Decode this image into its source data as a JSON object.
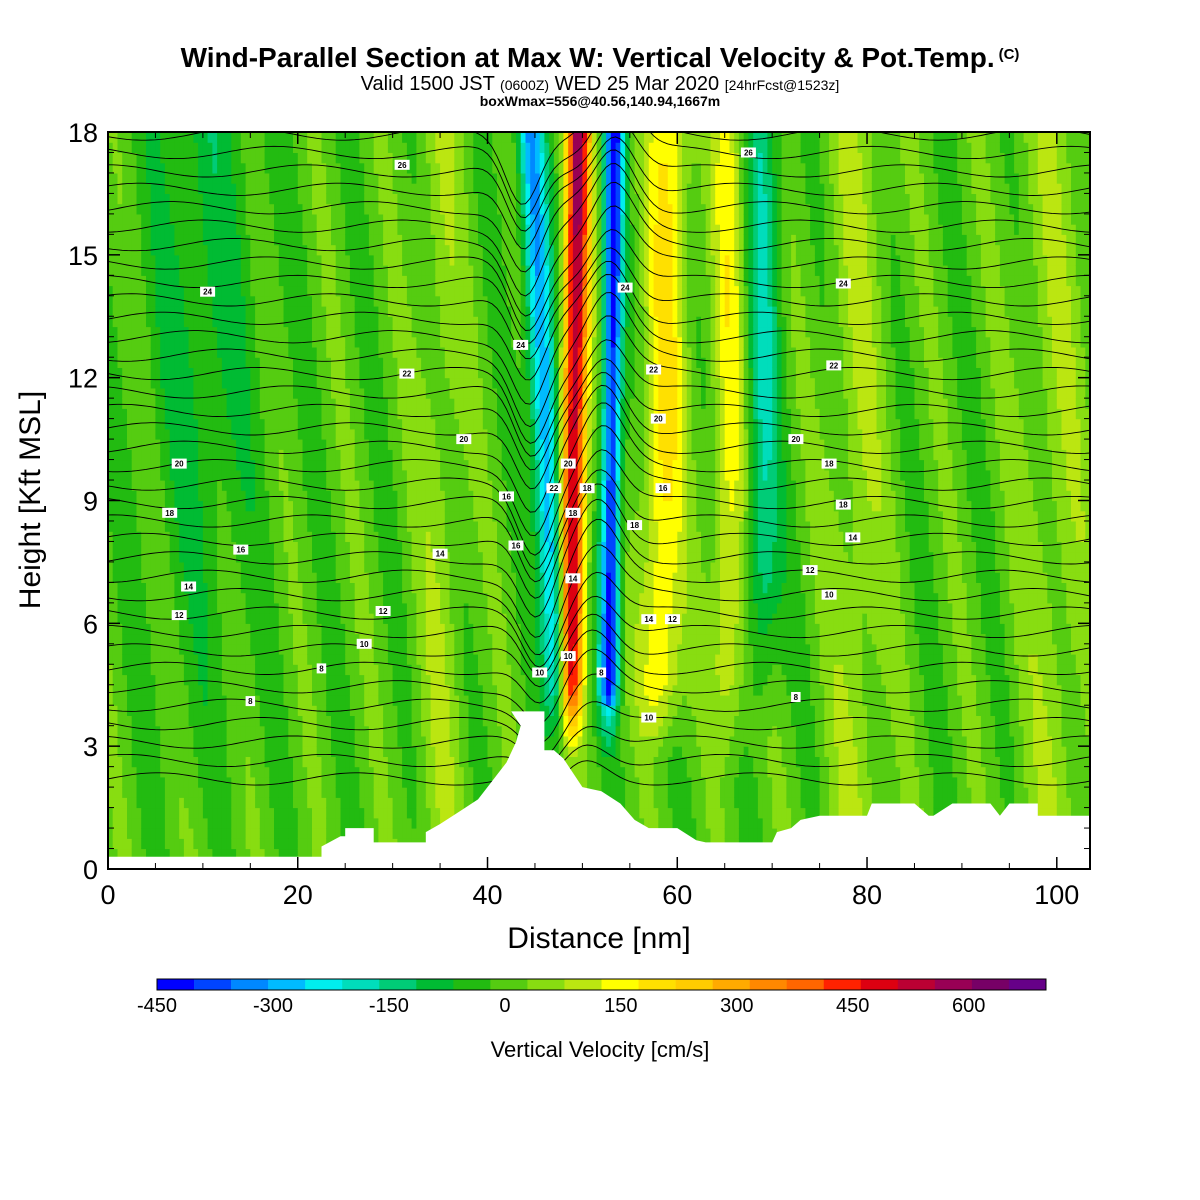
{
  "header": {
    "title": "Wind-Parallel Section at Max W: Vertical Velocity & Pot.Temp.",
    "copyright": "(C)",
    "valid_prefix": "Valid 1500 JST",
    "valid_utc": "(0600Z)",
    "valid_suffix": "WED 25 Mar 2020",
    "forecast": "[24hrFcst@1523z]",
    "box_info": "boxWmax=556@40.56,140.94,1667m"
  },
  "chart_data": {
    "type": "heatmap",
    "xlabel": "Distance [nm]",
    "ylabel": "Height [Kft MSL]",
    "xlim": [
      0,
      103.5
    ],
    "ylim": [
      0,
      18
    ],
    "xticks": [
      0,
      20,
      40,
      60,
      80,
      100
    ],
    "yticks": [
      0,
      3,
      6,
      9,
      12,
      15,
      18
    ],
    "colorbar": {
      "title": "Vertical Velocity [cm/s]",
      "range": [
        -450,
        700
      ],
      "tick_values": [
        -450,
        -300,
        -150,
        0,
        150,
        300,
        450,
        600
      ],
      "tick_labels": [
        "-450",
        "-300",
        "-150",
        "0",
        "150",
        "300",
        "450",
        "600"
      ],
      "colors": [
        "#0000ff",
        "#0044ff",
        "#0088ff",
        "#00bbff",
        "#00eeee",
        "#00ddbb",
        "#00cc77",
        "#00bb33",
        "#22bb11",
        "#55cc11",
        "#88dd11",
        "#bbe611",
        "#ffff00",
        "#ffe000",
        "#ffcc00",
        "#ffaa00",
        "#ff8800",
        "#ff6600",
        "#ff2200",
        "#dd0011",
        "#bb0033",
        "#990055",
        "#770066",
        "#660088"
      ]
    },
    "terrain_kft": [
      [
        0,
        0.3
      ],
      [
        22.5,
        0.3
      ],
      [
        22.5,
        0.55
      ],
      [
        24.5,
        0.8
      ],
      [
        25,
        0.8
      ],
      [
        25,
        1.0
      ],
      [
        28,
        1.0
      ],
      [
        28,
        0.65
      ],
      [
        32,
        0.65
      ],
      [
        33.5,
        0.65
      ],
      [
        33.5,
        0.9
      ],
      [
        35,
        1.1
      ],
      [
        37,
        1.4
      ],
      [
        39,
        1.7
      ],
      [
        40,
        2.0
      ],
      [
        41,
        2.3
      ],
      [
        42,
        2.6
      ],
      [
        43,
        3.1
      ],
      [
        43.5,
        3.5
      ],
      [
        42.5,
        3.85
      ],
      [
        46,
        3.85
      ],
      [
        46,
        2.9
      ],
      [
        47,
        2.9
      ],
      [
        48,
        2.7
      ],
      [
        50,
        2.0
      ],
      [
        52,
        1.9
      ],
      [
        54,
        1.6
      ],
      [
        55.5,
        1.2
      ],
      [
        57,
        1.0
      ],
      [
        60,
        1.0
      ],
      [
        62,
        0.7
      ],
      [
        63,
        0.65
      ],
      [
        70,
        0.65
      ],
      [
        70.5,
        0.9
      ],
      [
        72,
        1.0
      ],
      [
        73,
        1.2
      ],
      [
        75,
        1.3
      ],
      [
        76,
        1.3
      ],
      [
        80,
        1.3
      ],
      [
        80.5,
        1.6
      ],
      [
        85,
        1.6
      ],
      [
        86.5,
        1.3
      ],
      [
        87,
        1.3
      ],
      [
        89,
        1.6
      ],
      [
        93,
        1.6
      ],
      [
        94,
        1.3
      ],
      [
        95,
        1.6
      ],
      [
        98,
        1.6
      ],
      [
        98,
        1.3
      ],
      [
        100,
        1.3
      ],
      [
        103.5,
        1.3
      ]
    ],
    "updraft_peak_cm_s": 556,
    "updraft_x_nm": 49,
    "downdraft_x_nm": [
      46.5,
      53
    ],
    "theta_contour_labels": [
      {
        "x": 31,
        "y": 17.2,
        "text": "26"
      },
      {
        "x": 67.5,
        "y": 17.5,
        "text": "26"
      },
      {
        "x": 10.5,
        "y": 14.1,
        "text": "24"
      },
      {
        "x": 54.5,
        "y": 14.2,
        "text": "24"
      },
      {
        "x": 77.5,
        "y": 14.3,
        "text": "24"
      },
      {
        "x": 43.5,
        "y": 12.8,
        "text": "24"
      },
      {
        "x": 31.5,
        "y": 12.1,
        "text": "22"
      },
      {
        "x": 57.5,
        "y": 12.2,
        "text": "22"
      },
      {
        "x": 76.5,
        "y": 12.3,
        "text": "22"
      },
      {
        "x": 37.5,
        "y": 10.5,
        "text": "20"
      },
      {
        "x": 58,
        "y": 11.0,
        "text": "20"
      },
      {
        "x": 72.5,
        "y": 10.5,
        "text": "20"
      },
      {
        "x": 7.5,
        "y": 9.9,
        "text": "20"
      },
      {
        "x": 48.5,
        "y": 9.9,
        "text": "20"
      },
      {
        "x": 76,
        "y": 9.9,
        "text": "18"
      },
      {
        "x": 47,
        "y": 9.3,
        "text": "22"
      },
      {
        "x": 50.5,
        "y": 9.3,
        "text": "18"
      },
      {
        "x": 42,
        "y": 9.1,
        "text": "16"
      },
      {
        "x": 58.5,
        "y": 9.3,
        "text": "16"
      },
      {
        "x": 77.5,
        "y": 8.9,
        "text": "18"
      },
      {
        "x": 6.5,
        "y": 8.7,
        "text": "18"
      },
      {
        "x": 49,
        "y": 8.7,
        "text": "18"
      },
      {
        "x": 55.5,
        "y": 8.4,
        "text": "18"
      },
      {
        "x": 43,
        "y": 7.9,
        "text": "16"
      },
      {
        "x": 14,
        "y": 7.8,
        "text": "16"
      },
      {
        "x": 35,
        "y": 7.7,
        "text": "14"
      },
      {
        "x": 78.5,
        "y": 8.1,
        "text": "14"
      },
      {
        "x": 74,
        "y": 7.3,
        "text": "12"
      },
      {
        "x": 49,
        "y": 7.1,
        "text": "14"
      },
      {
        "x": 8.5,
        "y": 6.9,
        "text": "14"
      },
      {
        "x": 76,
        "y": 6.7,
        "text": "10"
      },
      {
        "x": 29,
        "y": 6.3,
        "text": "12"
      },
      {
        "x": 57,
        "y": 6.1,
        "text": "14"
      },
      {
        "x": 59.5,
        "y": 6.1,
        "text": "12"
      },
      {
        "x": 7.5,
        "y": 6.2,
        "text": "12"
      },
      {
        "x": 27,
        "y": 5.5,
        "text": "10"
      },
      {
        "x": 48.5,
        "y": 5.2,
        "text": "10"
      },
      {
        "x": 45.5,
        "y": 4.8,
        "text": "10"
      },
      {
        "x": 22.5,
        "y": 4.9,
        "text": "8"
      },
      {
        "x": 52,
        "y": 4.8,
        "text": "8"
      },
      {
        "x": 15,
        "y": 4.1,
        "text": "8"
      },
      {
        "x": 57,
        "y": 3.7,
        "text": "10"
      },
      {
        "x": 72.5,
        "y": 4.2,
        "text": "8"
      }
    ]
  }
}
